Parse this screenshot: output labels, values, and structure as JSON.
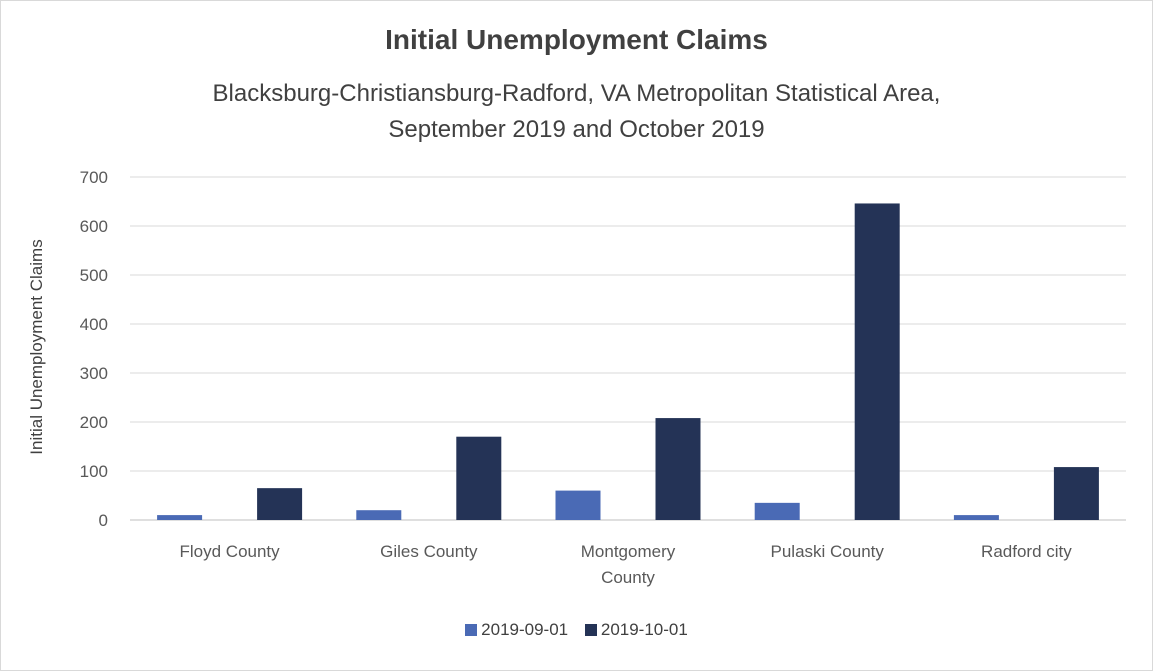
{
  "chart_data": {
    "type": "bar",
    "title": "Initial Unemployment Claims",
    "subtitle_lines": [
      "Blacksburg-Christiansburg-Radford, VA Metropolitan Statistical Area,",
      "September 2019 and October 2019"
    ],
    "ylabel": "Initial Unemployment Claims",
    "xlabel": "",
    "categories": [
      [
        "Floyd County"
      ],
      [
        "Giles County"
      ],
      [
        "Montgomery",
        "County"
      ],
      [
        "Pulaski County"
      ],
      [
        "Radford city"
      ]
    ],
    "series": [
      {
        "name": "2019-09-01",
        "color": "#4a6ab5",
        "values": [
          10,
          20,
          60,
          35,
          10
        ]
      },
      {
        "name": "2019-10-01",
        "color": "#243356",
        "values": [
          65,
          170,
          208,
          646,
          108
        ]
      }
    ],
    "ylim": [
      0,
      700
    ],
    "yticks": [
      0,
      100,
      200,
      300,
      400,
      500,
      600,
      700
    ],
    "grid": true,
    "legend_position": "bottom"
  }
}
